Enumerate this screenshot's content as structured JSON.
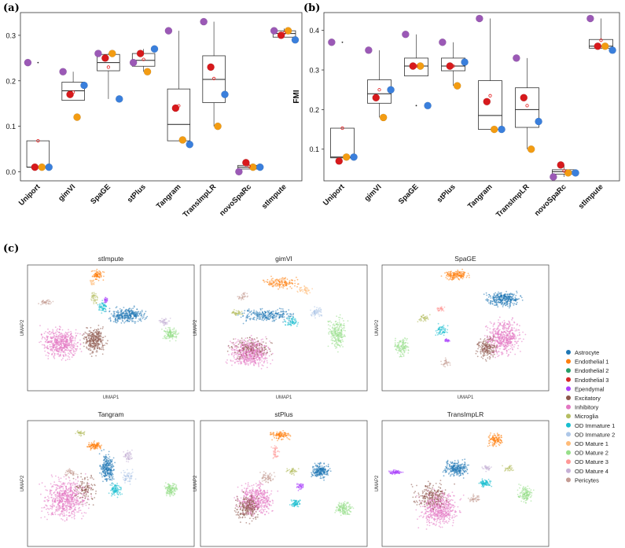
{
  "panels": {
    "a": "(a)",
    "b": "(b)",
    "c": "(c)"
  },
  "chart_data": [
    {
      "id": "ari",
      "type": "boxplot",
      "ylabel": "ARI",
      "ylim": [
        -0.02,
        0.35
      ],
      "yticks": [
        0.0,
        0.1,
        0.2,
        0.3
      ],
      "ytick_labels": [
        "0.0",
        "0.1",
        "0.2",
        "0.3"
      ],
      "categories": [
        "Uniport",
        "gimVI",
        "SpaGE",
        "stPlus",
        "Tangram",
        "TransImpLR",
        "novoSpaRc",
        "stImpute"
      ],
      "boxes": [
        {
          "q1": 0.01,
          "median": 0.01,
          "q3": 0.068,
          "whislo": 0.01,
          "whishi": 0.068,
          "mean": 0.068,
          "fliers": [
            0.24
          ]
        },
        {
          "q1": 0.157,
          "median": 0.178,
          "q3": 0.197,
          "whislo": 0.157,
          "whishi": 0.22,
          "mean": 0.175,
          "fliers": []
        },
        {
          "q1": 0.222,
          "median": 0.24,
          "q3": 0.258,
          "whislo": 0.16,
          "whishi": 0.26,
          "mean": 0.23,
          "fliers": []
        },
        {
          "q1": 0.232,
          "median": 0.245,
          "q3": 0.26,
          "whislo": 0.22,
          "whishi": 0.27,
          "mean": 0.247,
          "fliers": []
        },
        {
          "q1": 0.068,
          "median": 0.104,
          "q3": 0.182,
          "whislo": 0.068,
          "whishi": 0.31,
          "mean": 0.145,
          "fliers": []
        },
        {
          "q1": 0.152,
          "median": 0.203,
          "q3": 0.255,
          "whislo": 0.1,
          "whishi": 0.33,
          "mean": 0.205,
          "fliers": []
        },
        {
          "q1": 0.006,
          "median": 0.01,
          "q3": 0.014,
          "whislo": 0.006,
          "whishi": 0.02,
          "mean": 0.012,
          "fliers": []
        },
        {
          "q1": 0.296,
          "median": 0.304,
          "q3": 0.31,
          "whislo": 0.296,
          "whishi": 0.315,
          "mean": 0.305,
          "fliers": []
        }
      ],
      "points": [
        {
          "purple": 0.24,
          "red": 0.01,
          "orange": 0.01,
          "blue": 0.01
        },
        {
          "purple": 0.22,
          "red": 0.17,
          "orange": 0.12,
          "blue": 0.19
        },
        {
          "purple": 0.26,
          "red": 0.25,
          "orange": 0.26,
          "blue": 0.16
        },
        {
          "purple": 0.24,
          "red": 0.26,
          "orange": 0.22,
          "blue": 0.27
        },
        {
          "purple": 0.31,
          "red": 0.14,
          "orange": 0.07,
          "blue": 0.06
        },
        {
          "purple": 0.33,
          "red": 0.23,
          "orange": 0.1,
          "blue": 0.17
        },
        {
          "purple": 0.0,
          "red": 0.02,
          "orange": 0.01,
          "blue": 0.01
        },
        {
          "purple": 0.31,
          "red": 0.3,
          "orange": 0.31,
          "blue": 0.29
        }
      ]
    },
    {
      "id": "fmi",
      "type": "boxplot",
      "ylabel": "FMI",
      "ylim": [
        0.02,
        0.445
      ],
      "yticks": [
        0.1,
        0.2,
        0.3,
        0.4
      ],
      "ytick_labels": [
        "0.1",
        "0.2",
        "0.3",
        "0.4"
      ],
      "categories": [
        "Uniport",
        "gimVI",
        "SpaGE",
        "stPlus",
        "Tangram",
        "TransImpLR",
        "novoSpaRc",
        "stImpute"
      ],
      "boxes": [
        {
          "q1": 0.078,
          "median": 0.08,
          "q3": 0.153,
          "whislo": 0.078,
          "whishi": 0.153,
          "mean": 0.153,
          "fliers": [
            0.37
          ]
        },
        {
          "q1": 0.216,
          "median": 0.24,
          "q3": 0.275,
          "whislo": 0.18,
          "whishi": 0.35,
          "mean": 0.25,
          "fliers": []
        },
        {
          "q1": 0.285,
          "median": 0.31,
          "q3": 0.33,
          "whislo": 0.285,
          "whishi": 0.39,
          "mean": 0.31,
          "fliers": [
            0.21
          ]
        },
        {
          "q1": 0.298,
          "median": 0.31,
          "q3": 0.33,
          "whislo": 0.26,
          "whishi": 0.37,
          "mean": 0.31,
          "fliers": []
        },
        {
          "q1": 0.15,
          "median": 0.185,
          "q3": 0.273,
          "whislo": 0.15,
          "whishi": 0.43,
          "mean": 0.235,
          "fliers": []
        },
        {
          "q1": 0.155,
          "median": 0.2,
          "q3": 0.255,
          "whislo": 0.1,
          "whishi": 0.33,
          "mean": 0.21,
          "fliers": []
        },
        {
          "q1": 0.037,
          "median": 0.043,
          "q3": 0.048,
          "whislo": 0.03,
          "whishi": 0.06,
          "mean": 0.045,
          "fliers": []
        },
        {
          "q1": 0.355,
          "median": 0.36,
          "q3": 0.377,
          "whislo": 0.355,
          "whishi": 0.43,
          "mean": 0.375,
          "fliers": []
        }
      ],
      "points": [
        {
          "purple": 0.37,
          "red": 0.07,
          "orange": 0.08,
          "blue": 0.08
        },
        {
          "purple": 0.35,
          "red": 0.23,
          "orange": 0.18,
          "blue": 0.25
        },
        {
          "purple": 0.39,
          "red": 0.31,
          "orange": 0.31,
          "blue": 0.21
        },
        {
          "purple": 0.37,
          "red": 0.31,
          "orange": 0.26,
          "blue": 0.32
        },
        {
          "purple": 0.43,
          "red": 0.22,
          "orange": 0.15,
          "blue": 0.15
        },
        {
          "purple": 0.33,
          "red": 0.23,
          "orange": 0.1,
          "blue": 0.17
        },
        {
          "purple": 0.03,
          "red": 0.06,
          "orange": 0.04,
          "blue": 0.04
        },
        {
          "purple": 0.43,
          "red": 0.36,
          "orange": 0.36,
          "blue": 0.35
        }
      ]
    },
    {
      "id": "umap",
      "type": "scatter",
      "xlabel": "UMAP1",
      "ylabel": "UMAP2",
      "subplots": [
        "stImpute",
        "gimVI",
        "SpaGE",
        "Tangram",
        "stPlus",
        "TransImpLR"
      ],
      "legend": {
        "position": "right",
        "entries": [
          "Astrocyte",
          "Endothelial 1",
          "Endothelial 2",
          "Endothelial 3",
          "Ependymal",
          "Excitatory",
          "Inhibitory",
          "Microglia",
          "OD Immature 1",
          "OD Immature 2",
          "OD Mature 1",
          "OD Mature 2",
          "OD Mature 3",
          "OD Mature 4",
          "Pericytes"
        ],
        "colors": [
          "#1f77b4",
          "#ff7f0e",
          "#279e68",
          "#d62728",
          "#aa40fc",
          "#8c564b",
          "#e377c2",
          "#b5bd61",
          "#17becf",
          "#aec7e8",
          "#ffbb78",
          "#98df8a",
          "#ff9896",
          "#c5b0d5",
          "#c49c94"
        ]
      }
    }
  ],
  "point_colors": {
    "purple": "#9b59b6",
    "red": "#d7191c",
    "orange": "#f39c12",
    "blue": "#3a7fdc"
  }
}
